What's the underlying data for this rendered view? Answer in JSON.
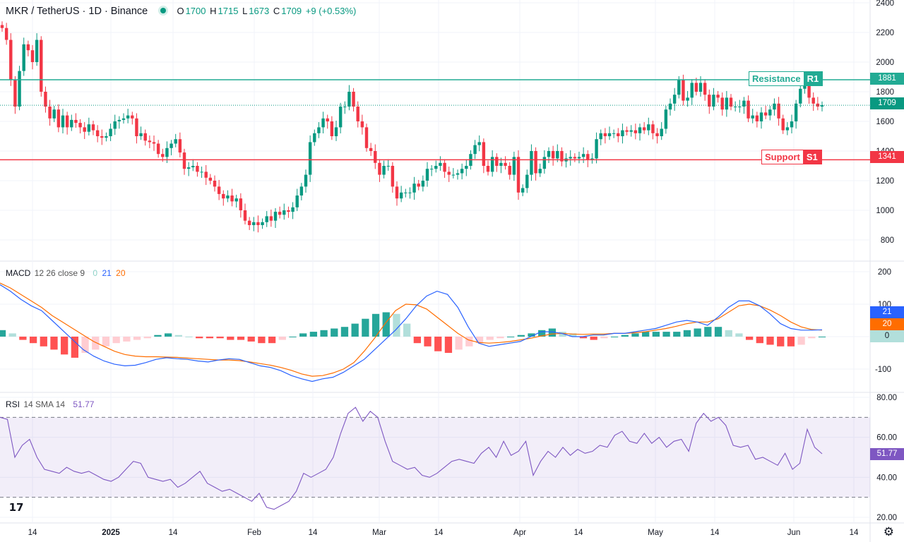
{
  "header": {
    "symbol": "MKR / TetherUS · 1D · Binance",
    "status_color": "#089981",
    "o_label": "O",
    "o_value": "1700",
    "h_label": "H",
    "h_value": "1715",
    "l_label": "L",
    "l_value": "1673",
    "c_label": "C",
    "c_value": "1709",
    "change": "+9 (+0.53%)"
  },
  "levels": {
    "resistance": {
      "name": "Resistance",
      "code": "R1",
      "price": 1881,
      "price_label": "1881",
      "color": "#22ab94"
    },
    "support": {
      "name": "Support",
      "code": "S1",
      "price": 1341,
      "price_label": "1341",
      "color": "#f23645"
    },
    "last_price_label": "1709",
    "last_price": 1709
  },
  "macd_legend": {
    "title": "MACD",
    "params": "12 26 close 9",
    "hist": "0",
    "macd": "21",
    "signal": "20"
  },
  "macd_badges": {
    "macd": "21",
    "signal": "20",
    "hist": "0"
  },
  "rsi_legend": {
    "title": "RSI",
    "params": "14 SMA 14",
    "value": "51.77"
  },
  "rsi_badge": "51.77",
  "time_labels": [
    "14",
    "2025",
    "14",
    "Feb",
    "14",
    "Mar",
    "14",
    "Apr",
    "14",
    "May",
    "14",
    "Jun",
    "14"
  ],
  "colors": {
    "up": "#089981",
    "down": "#f23645",
    "macd_line": "#2962ff",
    "signal_line": "#ff6d00",
    "rsi_line": "#7e57c2",
    "rsi_band": "#7e57c2"
  },
  "icons": {
    "logo": "tradingview-logo-icon",
    "settings": "gear-icon"
  },
  "chart_data": [
    {
      "type": "candlestick",
      "title": "MKR / TetherUS · 1D · Binance",
      "ylim": [
        700,
        2400
      ],
      "y_ticks": [
        800,
        1000,
        1200,
        1400,
        1600,
        1800,
        2000,
        2200,
        2400
      ],
      "x_start": "2024-11-29",
      "close": [
        2230,
        2150,
        1880,
        1700,
        1940,
        2120,
        2080,
        2000,
        2150,
        1800,
        1700,
        1620,
        1680,
        1560,
        1640,
        1560,
        1610,
        1590,
        1560,
        1530,
        1580,
        1540,
        1500,
        1490,
        1500,
        1550,
        1600,
        1610,
        1620,
        1640,
        1620,
        1500,
        1520,
        1470,
        1460,
        1450,
        1380,
        1360,
        1420,
        1450,
        1480,
        1390,
        1280,
        1290,
        1300,
        1260,
        1260,
        1220,
        1200,
        1160,
        1110,
        1080,
        1100,
        1060,
        1080,
        1000,
        930,
        900,
        920,
        900,
        920,
        960,
        930,
        990,
        970,
        1000,
        990,
        1020,
        1100,
        1160,
        1240,
        1460,
        1520,
        1560,
        1620,
        1600,
        1500,
        1560,
        1700,
        1700,
        1800,
        1700,
        1600,
        1560,
        1420,
        1400,
        1320,
        1240,
        1300,
        1300,
        1160,
        1080,
        1120,
        1120,
        1120,
        1180,
        1160,
        1200,
        1280,
        1280,
        1300,
        1320,
        1260,
        1240,
        1240,
        1250,
        1280,
        1300,
        1380,
        1440,
        1460,
        1300,
        1260,
        1360,
        1300,
        1320,
        1300,
        1240,
        1360,
        1120,
        1150,
        1240,
        1400,
        1250,
        1280,
        1360,
        1400,
        1350,
        1400,
        1330,
        1350,
        1360,
        1350,
        1360,
        1380,
        1340,
        1350,
        1480,
        1520,
        1500,
        1520,
        1520,
        1500,
        1540,
        1530,
        1540,
        1520,
        1560,
        1540,
        1580,
        1520,
        1500,
        1550,
        1680,
        1720,
        1780,
        1880,
        1740,
        1760,
        1860,
        1800,
        1860,
        1780,
        1700,
        1780,
        1760,
        1680,
        1760,
        1700,
        1700,
        1700,
        1740,
        1620,
        1640,
        1600,
        1660,
        1640,
        1680,
        1720,
        1620,
        1540,
        1560,
        1600,
        1720,
        1820,
        1860,
        1760,
        1720,
        1700,
        1709
      ]
    },
    {
      "type": "line",
      "title": "MACD 12 26 close 9",
      "ylim": [
        -170,
        230
      ],
      "y_ticks": [
        -100,
        0,
        100,
        200
      ],
      "macd": [
        160,
        140,
        115,
        95,
        80,
        50,
        20,
        -10,
        -40,
        -60,
        -75,
        -85,
        -90,
        -88,
        -80,
        -70,
        -65,
        -68,
        -70,
        -75,
        -78,
        -72,
        -68,
        -70,
        -80,
        -90,
        -95,
        -105,
        -120,
        -130,
        -138,
        -130,
        -125,
        -110,
        -90,
        -70,
        -40,
        -10,
        20,
        55,
        95,
        125,
        140,
        130,
        90,
        30,
        -20,
        -30,
        -25,
        -20,
        -15,
        0,
        15,
        15,
        10,
        0,
        0,
        5,
        5,
        10,
        10,
        15,
        20,
        25,
        35,
        45,
        50,
        45,
        35,
        60,
        90,
        110,
        110,
        95,
        70,
        40,
        25,
        20,
        20,
        21
      ],
      "signal": [
        165,
        150,
        130,
        110,
        90,
        65,
        45,
        25,
        5,
        -15,
        -30,
        -45,
        -55,
        -60,
        -62,
        -62,
        -63,
        -64,
        -66,
        -68,
        -70,
        -72,
        -72,
        -74,
        -78,
        -83,
        -88,
        -95,
        -104,
        -115,
        -122,
        -120,
        -112,
        -100,
        -80,
        -45,
        -5,
        40,
        80,
        100,
        98,
        85,
        60,
        35,
        10,
        -10,
        -18,
        -20,
        -18,
        -15,
        -10,
        -5,
        2,
        8,
        10,
        8,
        7,
        8,
        8,
        10,
        10,
        12,
        15,
        20,
        25,
        32,
        40,
        45,
        45,
        55,
        75,
        95,
        100,
        95,
        82,
        65,
        45,
        30,
        22,
        20
      ],
      "histogram": [
        20,
        10,
        -10,
        -20,
        -30,
        -40,
        -55,
        -65,
        -50,
        -40,
        -30,
        -20,
        -15,
        -10,
        -5,
        5,
        10,
        5,
        0,
        -5,
        -5,
        -5,
        -10,
        -10,
        -15,
        -20,
        -20,
        -10,
        0,
        10,
        15,
        20,
        25,
        30,
        40,
        55,
        70,
        75,
        70,
        40,
        -20,
        -30,
        -45,
        -50,
        -40,
        -30,
        -20,
        -10,
        -5,
        0,
        5,
        10,
        20,
        25,
        15,
        10,
        -5,
        -10,
        -5,
        0,
        5,
        10,
        15,
        15,
        15,
        15,
        20,
        25,
        30,
        30,
        20,
        10,
        -10,
        -20,
        -25,
        -30,
        -30,
        -25,
        -5,
        0
      ]
    },
    {
      "type": "line",
      "title": "RSI 14 SMA 14",
      "ylim": [
        20,
        80
      ],
      "y_ticks": [
        20.0,
        40.0,
        60.0,
        80.0
      ],
      "band": [
        30,
        70
      ],
      "values": [
        70,
        69,
        50,
        56,
        59,
        50,
        44,
        43,
        42,
        45,
        43,
        42,
        43,
        41,
        39,
        38,
        40,
        44,
        48,
        47,
        40,
        39,
        38,
        39,
        35,
        37,
        40,
        43,
        37,
        35,
        33,
        34,
        32,
        30,
        28,
        32,
        25,
        24,
        26,
        28,
        33,
        42,
        40,
        42,
        44,
        50,
        62,
        72,
        75,
        68,
        73,
        70,
        58,
        48,
        46,
        44,
        45,
        41,
        40,
        42,
        45,
        48,
        49,
        48,
        47,
        52,
        55,
        50,
        58,
        51,
        53,
        58,
        41,
        48,
        53,
        50,
        55,
        51,
        54,
        52,
        53,
        56,
        55,
        61,
        63,
        58,
        57,
        62,
        57,
        60,
        55,
        58,
        59,
        53,
        67,
        72,
        68,
        70,
        66,
        56,
        55,
        56,
        49,
        50,
        48,
        46,
        52,
        44,
        47,
        64,
        55,
        51.77
      ]
    }
  ]
}
